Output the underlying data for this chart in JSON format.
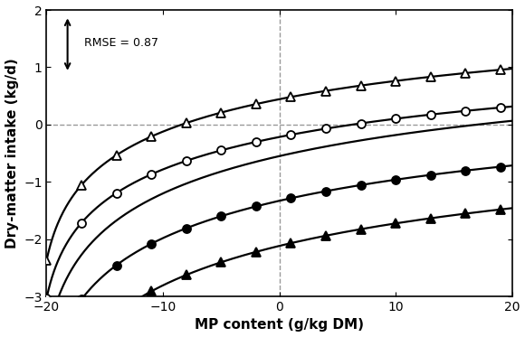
{
  "x_min": -20,
  "x_max": 20,
  "y_min": -3,
  "y_max": 2,
  "xlabel": "MP content (g/kg DM)",
  "ylabel": "Dry-matter intake (kg/d)",
  "rmse_text": "RMSE = 0.87",
  "curve_params": [
    {
      "marker": "^",
      "fillstyle": "none",
      "a": -2.48,
      "b": 0.96,
      "c": -0.0055
    },
    {
      "marker": "o",
      "fillstyle": "none",
      "a": -3.14,
      "b": 0.96,
      "c": -0.0055
    },
    {
      "marker": "none",
      "fillstyle": "none",
      "a": -3.9,
      "b": 1.1,
      "c": -0.006
    },
    {
      "marker": "o",
      "fillstyle": "full",
      "a": -4.68,
      "b": 1.1,
      "c": -0.006
    },
    {
      "marker": "^",
      "fillstyle": "full",
      "a": -5.62,
      "b": 1.15,
      "c": -0.0055
    }
  ],
  "marker_x_points": [
    -20,
    -17,
    -14,
    -11,
    -8,
    -5,
    -2,
    1,
    4,
    7,
    10,
    13,
    16,
    19
  ],
  "background_color": "#ffffff"
}
